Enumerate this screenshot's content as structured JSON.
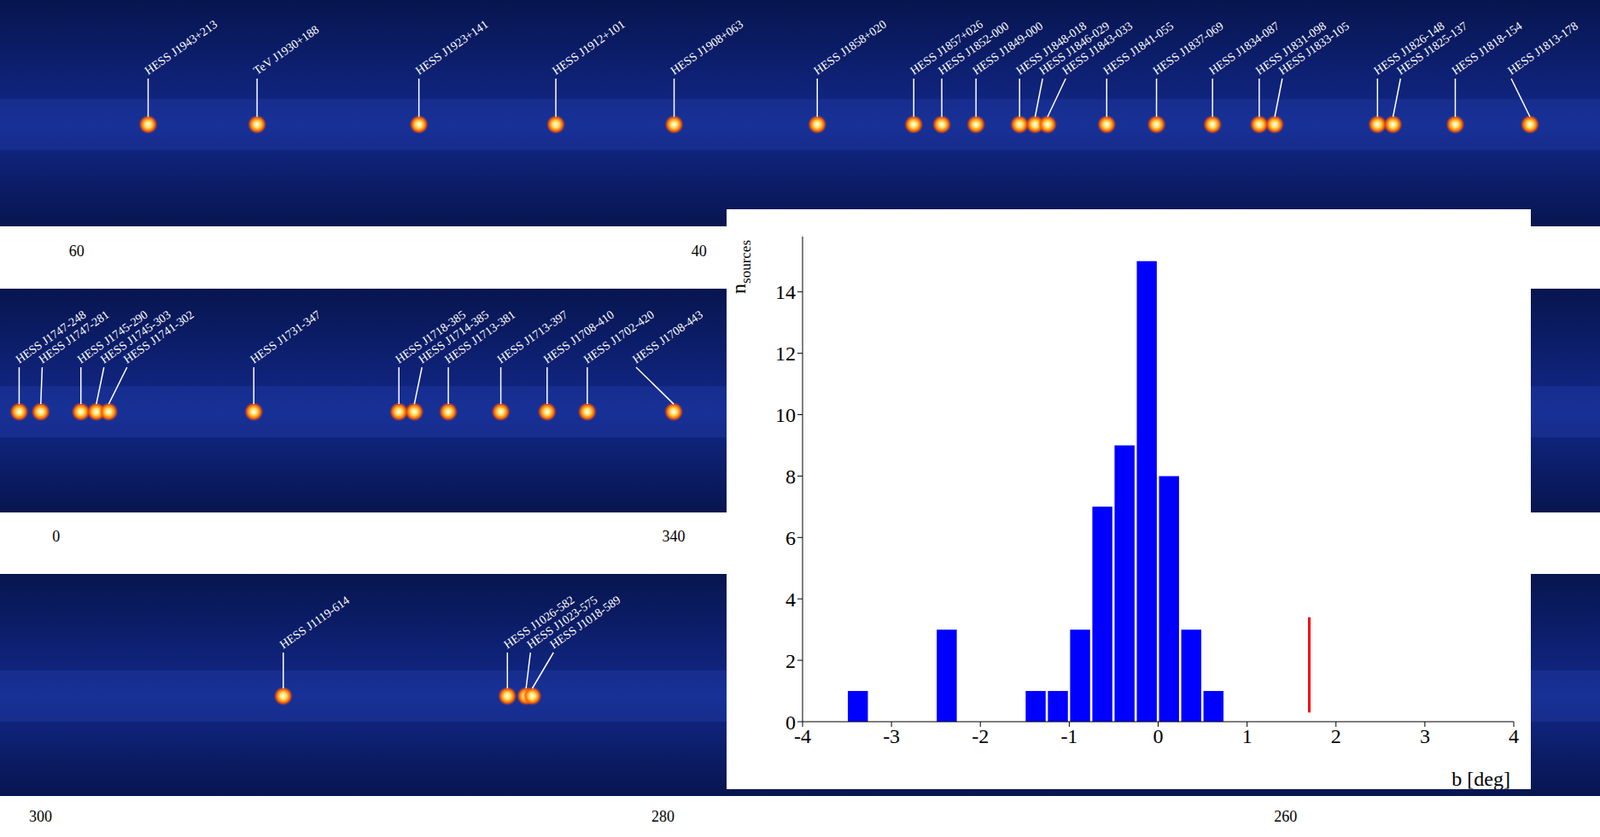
{
  "maps": [
    {
      "xlim": [
        62.46,
        11.05
      ],
      "xticks": [
        60,
        40
      ],
      "sources": [
        {
          "name": "HESS J1943+213",
          "l": 57.7
        },
        {
          "name": "TeV J1930+188",
          "l": 54.2
        },
        {
          "name": "HESS J1923+141",
          "l": 49.0
        },
        {
          "name": "HESS J1912+101",
          "l": 44.6
        },
        {
          "name": "HESS J1908+063",
          "l": 40.8
        },
        {
          "name": "HESS J1858+020",
          "l": 36.2
        },
        {
          "name": "HESS J1857+026",
          "l": 33.1
        },
        {
          "name": "HESS J1852-000",
          "l": 32.2
        },
        {
          "name": "HESS J1849-000",
          "l": 31.1
        },
        {
          "name": "HESS J1848-018",
          "l": 29.7
        },
        {
          "name": "HESS J1846-029",
          "l": 29.2
        },
        {
          "name": "HESS J1843-033",
          "l": 28.8
        },
        {
          "name": "HESS J1841-055",
          "l": 26.9
        },
        {
          "name": "HESS J1837-069",
          "l": 25.3
        },
        {
          "name": "HESS J1834-087",
          "l": 23.5
        },
        {
          "name": "HESS J1831-098",
          "l": 22.0
        },
        {
          "name": "HESS J1833-105",
          "l": 21.5
        },
        {
          "name": "HESS J1826-148",
          "l": 18.2
        },
        {
          "name": "HESS J1825-137",
          "l": 17.7
        },
        {
          "name": "HESS J1818-154",
          "l": 15.7
        },
        {
          "name": "HESS J1813-178",
          "l": 13.3
        }
      ]
    },
    {
      "xlim": [
        1.82,
        -50.0
      ],
      "xticks": [
        0,
        {
          "value": -20,
          "label": "340"
        }
      ],
      "sources": [
        {
          "name": "HESS J1747-248",
          "l": 1.2
        },
        {
          "name": "HESS J1747-281",
          "l": 0.5
        },
        {
          "name": "HESS J1745-290",
          "l": -0.8
        },
        {
          "name": "HESS J1745-303",
          "l": -1.3
        },
        {
          "name": "HESS J1741-302",
          "l": -1.7
        },
        {
          "name": "HESS J1731-347",
          "l": -6.4
        },
        {
          "name": "HESS J1718-385",
          "l": -11.1
        },
        {
          "name": "HESS J1714-385",
          "l": -11.6
        },
        {
          "name": "HESS J1713-381",
          "l": -12.7
        },
        {
          "name": "HESS J1713-397",
          "l": -14.4
        },
        {
          "name": "HESS J1708-410",
          "l": -15.9
        },
        {
          "name": "HESS J1702-420",
          "l": -17.2
        },
        {
          "name": "HESS J1708-443",
          "l": -20.0
        }
      ]
    },
    {
      "xlim": [
        301.3,
        249.9
      ],
      "xticks": [
        300,
        280,
        260
      ],
      "sources": [
        {
          "name": "HESS J1119-614",
          "l": 292.2
        },
        {
          "name": "HESS J1026-582",
          "l": 285.0
        },
        {
          "name": "HESS J1023-575",
          "l": 284.4
        },
        {
          "name": "HESS J1018-589",
          "l": 284.2
        }
      ]
    }
  ],
  "chart_data": {
    "type": "histogram",
    "bins": [
      -4,
      -3.75,
      -3.5,
      -3.25,
      -3,
      -2.75,
      -2.5,
      -2.25,
      -2,
      -1.75,
      -1.5,
      -1.25,
      -1,
      -0.75,
      -0.5,
      -0.25,
      0,
      0.25,
      0.5,
      0.75,
      1,
      1.25,
      1.5,
      1.75,
      2,
      2.25,
      2.5,
      2.75,
      3,
      3.25,
      3.5,
      3.75,
      4
    ],
    "counts": [
      0,
      0,
      1,
      0,
      0,
      0,
      3,
      0,
      0,
      0,
      1,
      1,
      3,
      7,
      9,
      15,
      8,
      3,
      1,
      0,
      0,
      0,
      0,
      0,
      0,
      0,
      0,
      0,
      0,
      0,
      0,
      0
    ],
    "color": "#0000ff",
    "xlim": [
      -4,
      4
    ],
    "xticks": [
      -4,
      -3,
      -2,
      -1,
      0,
      1,
      2,
      3,
      4
    ],
    "ylim": [
      0,
      15.8
    ],
    "yticks": [
      0,
      2,
      4,
      6,
      8,
      10,
      12,
      14
    ],
    "x_label": "b [deg]",
    "y_label": "n",
    "y_label_subscript": "sources",
    "reference_line": {
      "x": 1.7,
      "y": [
        0.3,
        3.4
      ],
      "color": "#ff0000"
    }
  }
}
